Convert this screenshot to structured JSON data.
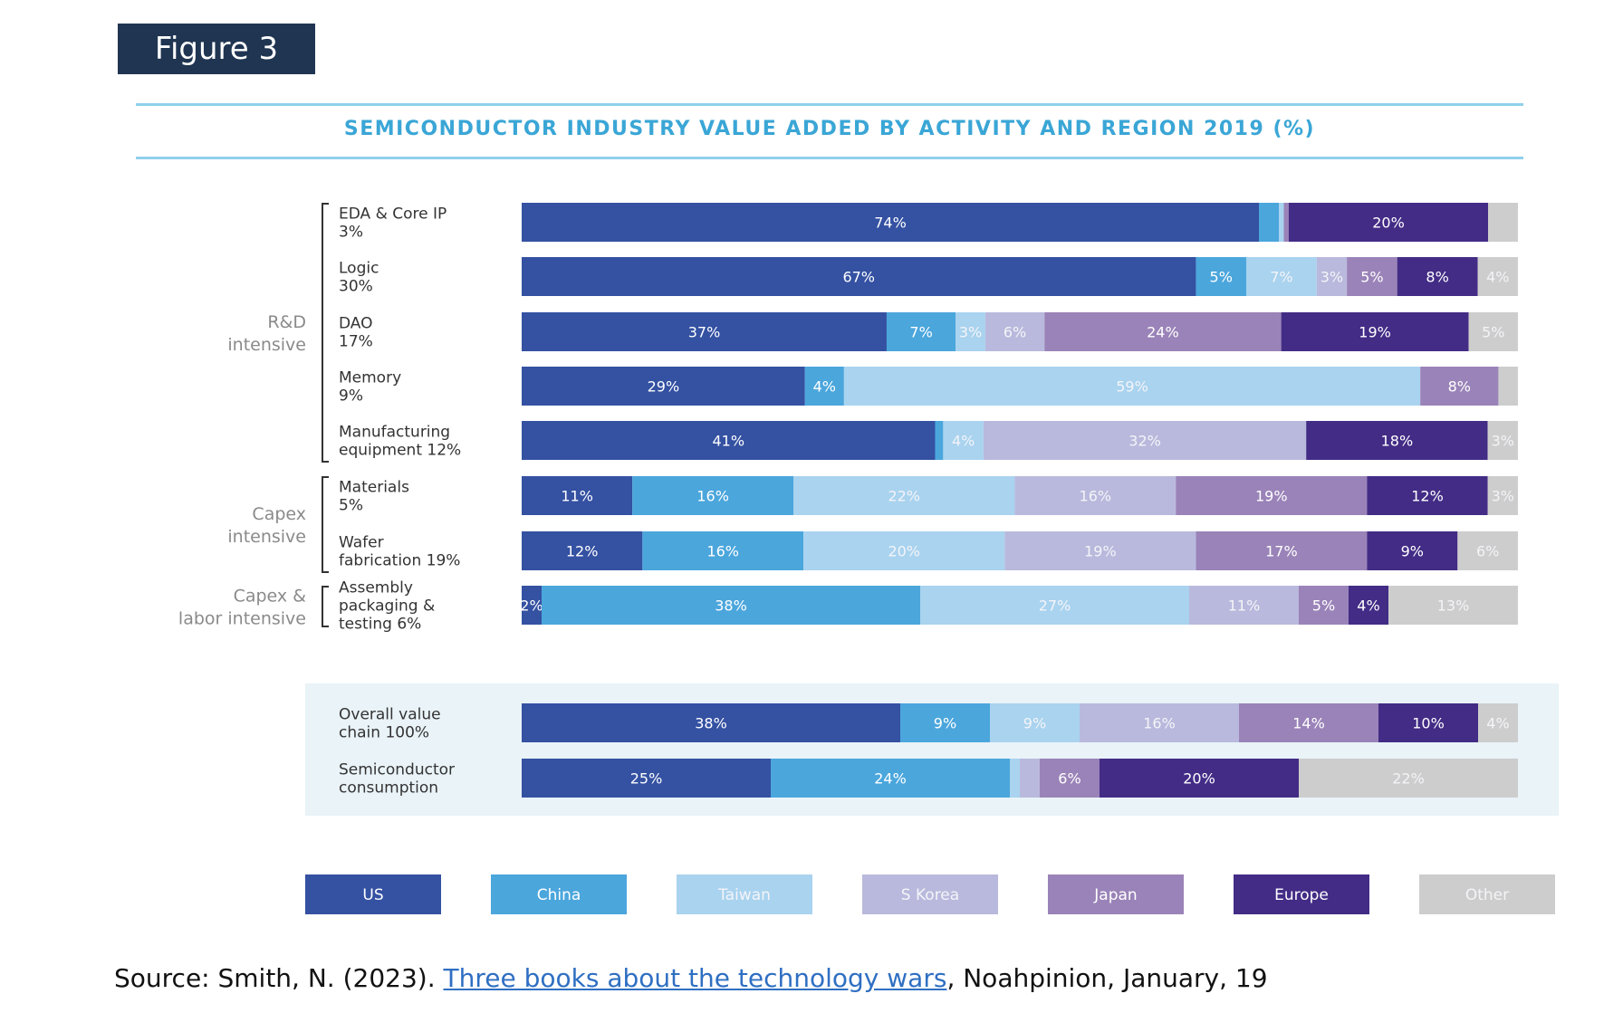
{
  "figure_label": "Figure 3",
  "source": {
    "prefix": "Source: Smith, N. (2023). ",
    "link_text": "Three books about the technology wars",
    "suffix": ", Noahpinion, January, 19"
  },
  "colors": {
    "US": "#3451a2",
    "China": "#4ba6dc",
    "Taiwan": "#a9d3ef",
    "S Korea": "#b9b9dd",
    "Japan": "#9a83b8",
    "Europe": "#432c86",
    "Other": "#cdcdcd",
    "group_band": "#e9f3f8",
    "title": "#3aa6d6",
    "rule": "#8fd0ea"
  },
  "chart_data": {
    "type": "bar",
    "orientation": "horizontal-stacked-100",
    "title": "SEMICONDUCTOR INDUSTRY VALUE ADDED BY ACTIVITY AND REGION 2019 (%)",
    "series_names": [
      "US",
      "China",
      "Taiwan",
      "S Korea",
      "Japan",
      "Europe",
      "Other"
    ],
    "groups": [
      {
        "label": [
          "R&D",
          "intensive"
        ],
        "rows": [
          0,
          4
        ]
      },
      {
        "label": [
          "Capex",
          "intensive"
        ],
        "rows": [
          5,
          6
        ]
      },
      {
        "label": [
          "Capex &",
          "labor intensive"
        ],
        "rows": [
          7,
          7
        ]
      }
    ],
    "rows": [
      {
        "label": [
          "EDA & Core IP",
          "3%"
        ],
        "values": [
          74,
          2,
          0.5,
          0,
          0.5,
          20,
          3
        ],
        "labels": [
          "74%",
          "",
          "",
          "",
          "",
          "20%",
          ""
        ]
      },
      {
        "label": [
          "Logic",
          "30%"
        ],
        "values": [
          67,
          5,
          7,
          3,
          5,
          8,
          4
        ],
        "labels": [
          "67%",
          "5%",
          "7%",
          "3%",
          "5%",
          "8%",
          "4%"
        ]
      },
      {
        "label": [
          "DAO",
          "17%"
        ],
        "values": [
          37,
          7,
          3,
          6,
          24,
          19,
          5
        ],
        "labels": [
          "37%",
          "7%",
          "3%",
          "6%",
          "24%",
          "19%",
          "5%"
        ]
      },
      {
        "label": [
          "Memory",
          "9%"
        ],
        "values": [
          29,
          4,
          59,
          0,
          8,
          0,
          2
        ],
        "labels": [
          "29%",
          "4%",
          "59%",
          "",
          "8%",
          "",
          ""
        ]
      },
      {
        "label": [
          "Manufacturing",
          "equipment 12%"
        ],
        "values": [
          41,
          0.8,
          4,
          32,
          0,
          18,
          3
        ],
        "labels": [
          "41%",
          "",
          "4%",
          "32%",
          "",
          "18%",
          "3%"
        ]
      },
      {
        "label": [
          "Materials",
          "5%"
        ],
        "values": [
          11,
          16,
          22,
          16,
          19,
          12,
          3
        ],
        "labels": [
          "11%",
          "16%",
          "22%",
          "16%",
          "19%",
          "12%",
          "3%"
        ]
      },
      {
        "label": [
          "Wafer",
          "fabrication 19%"
        ],
        "values": [
          12,
          16,
          20,
          19,
          17,
          9,
          6
        ],
        "labels": [
          "12%",
          "16%",
          "20%",
          "19%",
          "17%",
          "9%",
          "6%"
        ]
      },
      {
        "label": [
          "Assembly",
          "packaging &",
          "testing 6%"
        ],
        "values": [
          2,
          38,
          27,
          11,
          5,
          4,
          13
        ],
        "labels": [
          "2%",
          "38%",
          "27%",
          "11%",
          "5%",
          "4%",
          "13%"
        ]
      },
      {
        "label": [
          "Overall value",
          "chain 100%"
        ],
        "values": [
          38,
          9,
          9,
          16,
          14,
          10,
          4
        ],
        "labels": [
          "38%",
          "9%",
          "9%",
          "16%",
          "14%",
          "10%",
          "4%"
        ],
        "summary": true
      },
      {
        "label": [
          "Semiconductor",
          "consumption"
        ],
        "values": [
          25,
          24,
          1,
          2,
          6,
          20,
          22
        ],
        "labels": [
          "25%",
          "24%",
          "",
          "",
          "6%",
          "20%",
          "22%"
        ],
        "summary": true
      }
    ],
    "legend": [
      "US",
      "China",
      "Taiwan",
      "S Korea",
      "Japan",
      "Europe",
      "Other"
    ],
    "legend_position": "bottom"
  }
}
